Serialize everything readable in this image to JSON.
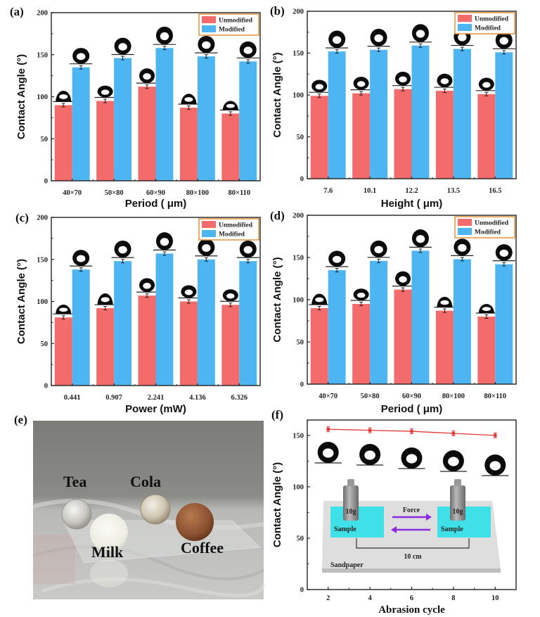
{
  "colors": {
    "unmodified": "#f46b6b",
    "modified": "#4db6f2",
    "legend_border": "#e0923a",
    "line_f": "#e03a3a",
    "sample": "#40e0e8",
    "arrow": "#8a2be2"
  },
  "chart_data": [
    {
      "id": "a",
      "panel_label": "(a)",
      "type": "bar",
      "title": "",
      "xlabel": "Period ( μm)",
      "ylabel": "Contact Angle (°)",
      "ylim": [
        0,
        200
      ],
      "yticks": [
        "0",
        "50",
        "100",
        "150",
        "200"
      ],
      "categories": [
        "40×70",
        "50×80",
        "60×90",
        "80×100",
        "80×110"
      ],
      "legend_position": "top-right",
      "series": [
        {
          "name": "Unmodified",
          "values": [
            90,
            95,
            112,
            87,
            80
          ]
        },
        {
          "name": "Modified",
          "values": [
            135,
            146,
            158,
            148,
            142
          ]
        }
      ]
    },
    {
      "id": "b",
      "panel_label": "(b)",
      "type": "bar",
      "title": "",
      "xlabel": "Height ( μm)",
      "ylabel": "Contact Angle (°)",
      "ylim": [
        0,
        200
      ],
      "yticks": [
        "0",
        "50",
        "100",
        "150",
        "200"
      ],
      "categories": [
        "7.6",
        "10.1",
        "12.2",
        "13.5",
        "16.5"
      ],
      "legend_position": "top-right",
      "series": [
        {
          "name": "Unmodified",
          "values": [
            99,
            102,
            107,
            105,
            101
          ]
        },
        {
          "name": "Modified",
          "values": [
            152,
            154,
            159,
            155,
            151
          ]
        }
      ]
    },
    {
      "id": "c",
      "panel_label": "(c)",
      "type": "bar",
      "title": "",
      "xlabel": "Power (mW)",
      "ylabel": "Contact Angle (°)",
      "ylim": [
        0,
        200
      ],
      "yticks": [
        "0",
        "50",
        "100",
        "150",
        "200"
      ],
      "categories": [
        "0.441",
        "0.907",
        "2.241",
        "4.136",
        "6.326"
      ],
      "legend_position": "top-right",
      "series": [
        {
          "name": "Unmodified",
          "values": [
            81,
            92,
            107,
            100,
            96
          ]
        },
        {
          "name": "Modified",
          "values": [
            138,
            148,
            157,
            150,
            148
          ]
        }
      ]
    },
    {
      "id": "d",
      "panel_label": "(d)",
      "type": "bar",
      "title": "",
      "xlabel": "Period ( μm)",
      "ylabel": "Contact Angle (°)",
      "ylim": [
        0,
        200
      ],
      "yticks": [
        "0",
        "50",
        "100",
        "150",
        "200"
      ],
      "categories": [
        "40×70",
        "50×80",
        "60×90",
        "80×100",
        "80×110"
      ],
      "legend_position": "top-right",
      "series": [
        {
          "name": "Unmodified",
          "values": [
            90,
            95,
            112,
            87,
            80
          ]
        },
        {
          "name": "Modified",
          "values": [
            135,
            146,
            158,
            148,
            142
          ]
        }
      ]
    },
    {
      "id": "f",
      "panel_label": "(f)",
      "type": "line",
      "title": "",
      "xlabel": "Abrasion cycle",
      "ylabel": "Contact Angle (°)",
      "xlim": [
        1,
        11
      ],
      "ylim": [
        0,
        165
      ],
      "xticks": [
        "2",
        "4",
        "6",
        "8",
        "10"
      ],
      "yticks": [
        "0",
        "50",
        "100",
        "150"
      ],
      "series": [
        {
          "name": "Contact angle",
          "x": [
            2,
            4,
            6,
            8,
            10
          ],
          "values": [
            156,
            155,
            154,
            152,
            150
          ]
        }
      ],
      "inset": {
        "weight_label": "10g",
        "sample_label": "Sample",
        "force_label": "Force",
        "distance_label": "10 cm",
        "surface_label": "Sandpaper"
      }
    }
  ],
  "photo_e": {
    "panel_label": "(e)",
    "droplets": [
      {
        "label": "Tea"
      },
      {
        "label": "Cola"
      },
      {
        "label": "Milk"
      },
      {
        "label": "Coffee"
      }
    ]
  }
}
